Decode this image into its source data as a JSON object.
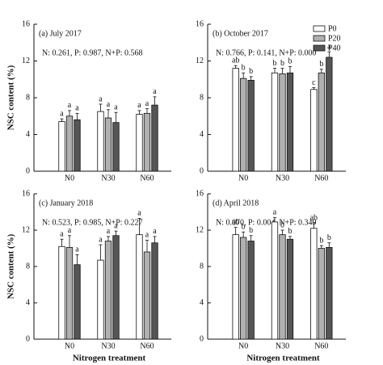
{
  "chart_data": [
    {
      "type": "bar",
      "title": "(a) July 2017",
      "subtitle": "N: 0.261, P: 0.987, N+P: 0.568",
      "y_label": "NSC content (%)",
      "categories": [
        "N0",
        "N30",
        "N60"
      ],
      "ylim": [
        0,
        16
      ],
      "yticks": [
        0,
        4,
        8,
        12,
        16
      ],
      "series": [
        {
          "name": "P0",
          "color": "#ffffff",
          "values": [
            5.4,
            6.5,
            6.2
          ],
          "errors": [
            0.3,
            0.8,
            0.4
          ],
          "letters": [
            "a",
            "a",
            "a"
          ]
        },
        {
          "name": "P20",
          "color": "#b0b0b0",
          "values": [
            6.0,
            5.8,
            6.3
          ],
          "errors": [
            0.6,
            0.9,
            0.5
          ],
          "letters": [
            "a",
            "a",
            "a"
          ]
        },
        {
          "name": "P40",
          "color": "#555555",
          "values": [
            5.6,
            5.3,
            7.2
          ],
          "errors": [
            0.7,
            1.1,
            0.9
          ],
          "letters": [
            "a",
            "a",
            "a"
          ]
        }
      ]
    },
    {
      "type": "bar",
      "title": "(b) October 2017",
      "subtitle": "N: 0.766, P: 0.141, N+P: 0.000",
      "legend": "upper right",
      "categories": [
        "N0",
        "N30",
        "N60"
      ],
      "ylim": [
        0,
        16
      ],
      "yticks": [
        0,
        4,
        8,
        12,
        16
      ],
      "series": [
        {
          "name": "P0",
          "color": "#ffffff",
          "values": [
            11.2,
            10.7,
            8.9
          ],
          "errors": [
            0.3,
            0.5,
            0.2
          ],
          "letters": [
            "ab",
            "b",
            "c"
          ]
        },
        {
          "name": "P20",
          "color": "#b0b0b0",
          "values": [
            10.1,
            10.6,
            10.7
          ],
          "errors": [
            0.6,
            0.6,
            0.4
          ],
          "letters": [
            "b",
            "b",
            "b"
          ]
        },
        {
          "name": "P40",
          "color": "#555555",
          "values": [
            9.9,
            10.7,
            12.4
          ],
          "errors": [
            0.4,
            0.7,
            0.6
          ],
          "letters": [
            "b",
            "b",
            "a"
          ]
        }
      ]
    },
    {
      "type": "bar",
      "title": "(c) January 2018",
      "subtitle": "N: 0.523, P: 0.985, N+P: 0.227",
      "y_label": "NSC content (%)",
      "x_label": "Nitrogen treatment",
      "categories": [
        "N0",
        "N30",
        "N60"
      ],
      "ylim": [
        0,
        16
      ],
      "yticks": [
        0,
        4,
        8,
        12,
        16
      ],
      "series": [
        {
          "name": "P0",
          "color": "#ffffff",
          "values": [
            10.2,
            8.7,
            11.5
          ],
          "errors": [
            0.8,
            1.7,
            1.8
          ],
          "letters": [
            "a",
            "a",
            "a"
          ]
        },
        {
          "name": "P20",
          "color": "#b0b0b0",
          "values": [
            10.1,
            10.8,
            9.6
          ],
          "errors": [
            1.3,
            0.5,
            1.3
          ],
          "letters": [
            "a",
            "a",
            "a"
          ]
        },
        {
          "name": "P40",
          "color": "#555555",
          "values": [
            8.2,
            11.4,
            10.6
          ],
          "errors": [
            1.1,
            0.5,
            0.7
          ],
          "letters": [
            "a",
            "a",
            "a"
          ]
        }
      ]
    },
    {
      "type": "bar",
      "title": "(d) April 2018",
      "subtitle": "N: 0.070, P: 0.004, N+P: 0.349",
      "x_label": "Nitrogen treatment",
      "categories": [
        "N0",
        "N30",
        "N60"
      ],
      "ylim": [
        0,
        16
      ],
      "yticks": [
        0,
        4,
        8,
        12,
        16
      ],
      "series": [
        {
          "name": "P0",
          "color": "#ffffff",
          "values": [
            11.5,
            12.9,
            12.2
          ],
          "errors": [
            0.8,
            0.5,
            0.6
          ],
          "letters": [
            "ab",
            "a",
            "ab"
          ]
        },
        {
          "name": "P20",
          "color": "#b0b0b0",
          "values": [
            11.2,
            11.5,
            10.0
          ],
          "errors": [
            0.6,
            0.5,
            0.3
          ],
          "letters": [
            "b",
            "b",
            "b"
          ]
        },
        {
          "name": "P40",
          "color": "#555555",
          "values": [
            10.8,
            11.0,
            10.1
          ],
          "errors": [
            0.6,
            0.3,
            0.5
          ],
          "letters": [
            "b",
            "b",
            "b"
          ]
        }
      ]
    }
  ]
}
